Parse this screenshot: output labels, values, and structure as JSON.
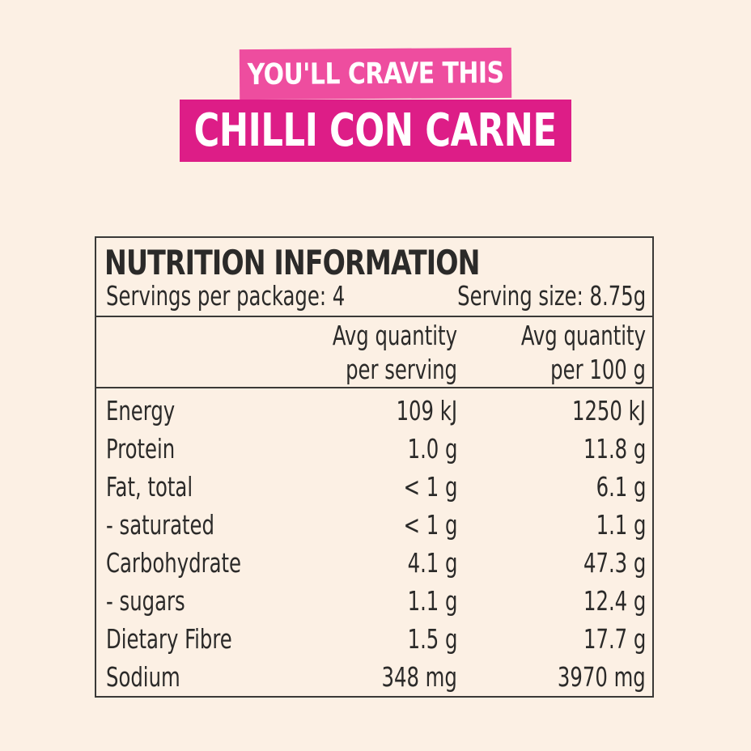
{
  "banner": {
    "tagline": "YOU'LL CRAVE THIS",
    "title": "CHILLI CON CARNE"
  },
  "nutrition": {
    "heading": "NUTRITION INFORMATION",
    "servings_per_package": "Servings per package: 4",
    "serving_size": "Serving size: 8.75g",
    "col_serving_line1": "Avg quantity",
    "col_serving_line2": "per serving",
    "col_100g_line1": "Avg quantity",
    "col_100g_line2": "per 100 g",
    "rows": [
      {
        "name": "Energy",
        "per_serving": "109 kJ",
        "per_100g": "1250 kJ"
      },
      {
        "name": "Protein",
        "per_serving": "1.0 g",
        "per_100g": "11.8 g"
      },
      {
        "name": "Fat, total",
        "per_serving": "< 1 g",
        "per_100g": "6.1 g"
      },
      {
        "name": "- saturated",
        "per_serving": "< 1 g",
        "per_100g": "1.1 g"
      },
      {
        "name": "Carbohydrate",
        "per_serving": "4.1 g",
        "per_100g": "47.3 g"
      },
      {
        "name": "- sugars",
        "per_serving": "1.1 g",
        "per_100g": "12.4 g"
      },
      {
        "name": "Dietary Fibre",
        "per_serving": "1.5 g",
        "per_100g": "17.7 g"
      },
      {
        "name": "Sodium",
        "per_serving": "348 mg",
        "per_100g": "3970 mg"
      }
    ]
  },
  "colors": {
    "background": "#fcf0e4",
    "tagline_bg": "#ee4d9f",
    "title_bg": "#dd1d87",
    "text": "#2b2a29"
  }
}
